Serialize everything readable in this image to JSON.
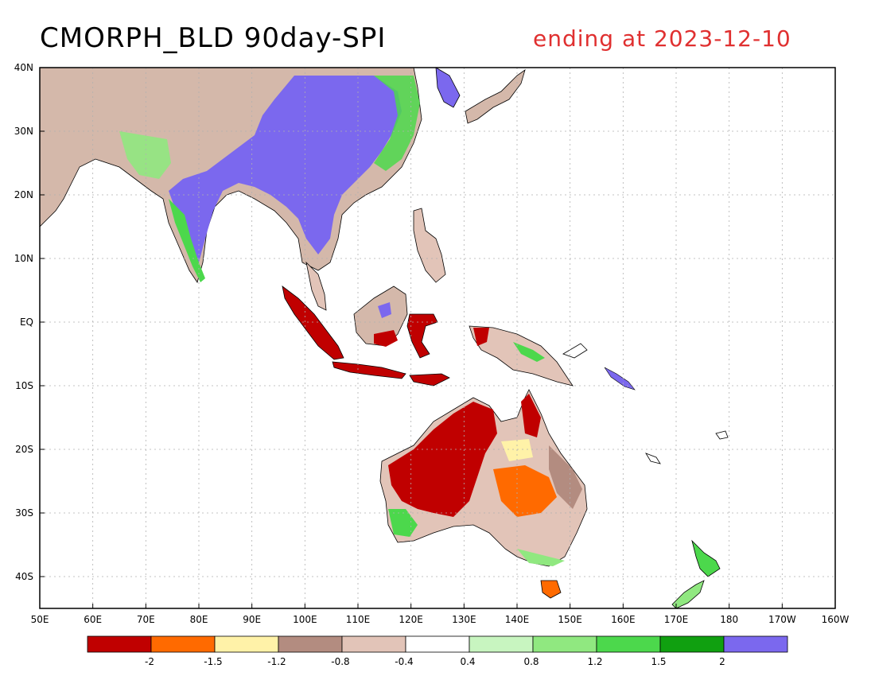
{
  "title": "CMORPH_BLD 90day-SPI",
  "subtitle": "ending at 2023-12-10",
  "colors": {
    "title": "#000000",
    "subtitle": "#e03030",
    "ocean": "#ffffff",
    "grid": "#b0b0b0"
  },
  "map": {
    "lon_range": [
      50,
      200
    ],
    "lat_range": [
      -45,
      40
    ],
    "lon_ticks": [
      "50E",
      "60E",
      "70E",
      "80E",
      "90E",
      "100E",
      "110E",
      "120E",
      "130E",
      "140E",
      "150E",
      "160E",
      "170E",
      "180",
      "170W",
      "160W"
    ],
    "lat_ticks": [
      "40N",
      "30N",
      "20N",
      "10N",
      "EQ",
      "10S",
      "20S",
      "30S",
      "40S"
    ]
  },
  "legend": {
    "labels": [
      "-2",
      "-1.5",
      "-1.2",
      "-0.8",
      "-0.4",
      "0.4",
      "0.8",
      "1.2",
      "1.5",
      "2"
    ],
    "colors": [
      "#c00000",
      "#ff6a00",
      "#fff2a8",
      "#b38c80",
      "#e2c4b8",
      "#ffffff",
      "#c8f5c0",
      "#90e880",
      "#4cd84c",
      "#10a010",
      "#7b68ee"
    ]
  }
}
